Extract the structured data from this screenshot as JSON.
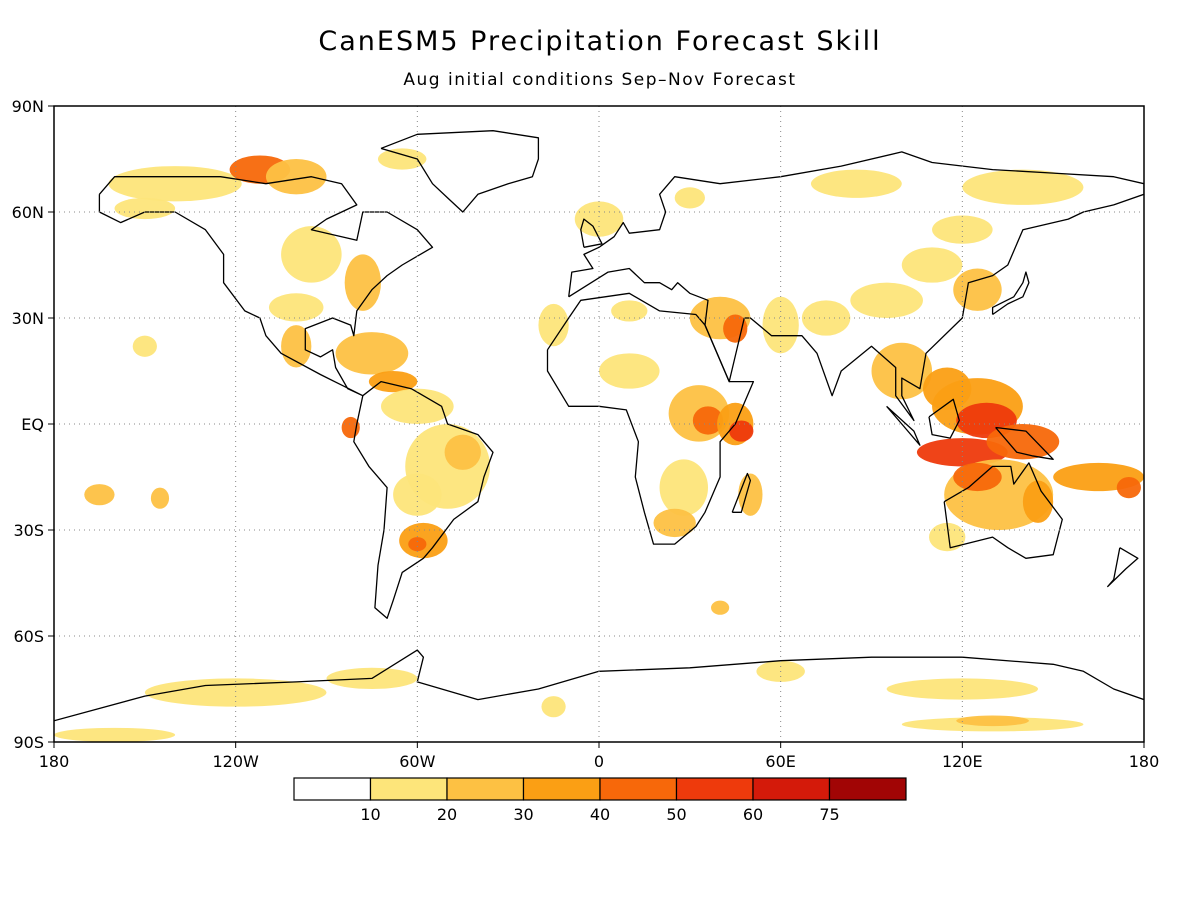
{
  "title": "CanESM5 Precipitation Forecast Skill",
  "subtitle": "Aug initial conditions  Sep–Nov Forecast",
  "map": {
    "lon_range": [
      -180,
      180
    ],
    "lat_range": [
      -90,
      90
    ],
    "grid": true,
    "lat_ticks": [
      {
        "lat": 90,
        "label": "90N"
      },
      {
        "lat": 60,
        "label": "60N"
      },
      {
        "lat": 30,
        "label": "30N"
      },
      {
        "lat": 0,
        "label": "EQ"
      },
      {
        "lat": -30,
        "label": "30S"
      },
      {
        "lat": -60,
        "label": "60S"
      },
      {
        "lat": -90,
        "label": "90S"
      }
    ],
    "lon_ticks": [
      {
        "lon": -180,
        "label": "180"
      },
      {
        "lon": -120,
        "label": "120W"
      },
      {
        "lon": -60,
        "label": "60W"
      },
      {
        "lon": 0,
        "label": "0"
      },
      {
        "lon": 60,
        "label": "60E"
      },
      {
        "lon": 120,
        "label": "120E"
      },
      {
        "lon": 180,
        "label": "180"
      }
    ]
  },
  "colorbar": {
    "colors": [
      "#ffffff",
      "#fde57a",
      "#fdc143",
      "#fb9f14",
      "#f7680a",
      "#ee3a0c",
      "#d41a0a",
      "#a10505"
    ],
    "labels": [
      "10",
      "20",
      "30",
      "40",
      "50",
      "60",
      "75"
    ]
  },
  "skill_regions": [
    {
      "lon": -140,
      "lat": 68,
      "rx": 22,
      "ry": 5,
      "level": 1
    },
    {
      "lon": -112,
      "lat": 72,
      "rx": 10,
      "ry": 4,
      "level": 4
    },
    {
      "lon": -100,
      "lat": 70,
      "rx": 10,
      "ry": 5,
      "level": 2
    },
    {
      "lon": -65,
      "lat": 75,
      "rx": 8,
      "ry": 3,
      "level": 1
    },
    {
      "lon": -150,
      "lat": 61,
      "rx": 10,
      "ry": 3,
      "level": 1
    },
    {
      "lon": -95,
      "lat": 48,
      "rx": 10,
      "ry": 8,
      "level": 1
    },
    {
      "lon": -78,
      "lat": 40,
      "rx": 6,
      "ry": 8,
      "level": 2
    },
    {
      "lon": -100,
      "lat": 33,
      "rx": 9,
      "ry": 4,
      "level": 1
    },
    {
      "lon": -100,
      "lat": 22,
      "rx": 5,
      "ry": 6,
      "level": 2
    },
    {
      "lon": -75,
      "lat": 20,
      "rx": 12,
      "ry": 6,
      "level": 2
    },
    {
      "lon": -68,
      "lat": 12,
      "rx": 8,
      "ry": 3,
      "level": 3
    },
    {
      "lon": -60,
      "lat": 5,
      "rx": 12,
      "ry": 5,
      "level": 1
    },
    {
      "lon": -50,
      "lat": -12,
      "rx": 14,
      "ry": 12,
      "level": 1
    },
    {
      "lon": -45,
      "lat": -8,
      "rx": 6,
      "ry": 5,
      "level": 2
    },
    {
      "lon": -60,
      "lat": -20,
      "rx": 8,
      "ry": 6,
      "level": 1
    },
    {
      "lon": -58,
      "lat": -33,
      "rx": 8,
      "ry": 5,
      "level": 3
    },
    {
      "lon": -60,
      "lat": -34,
      "rx": 3,
      "ry": 2,
      "level": 4
    },
    {
      "lon": -82,
      "lat": -1,
      "rx": 3,
      "ry": 3,
      "level": 4
    },
    {
      "lon": -165,
      "lat": -20,
      "rx": 5,
      "ry": 3,
      "level": 2
    },
    {
      "lon": -145,
      "lat": -21,
      "rx": 3,
      "ry": 3,
      "level": 2
    },
    {
      "lon": -150,
      "lat": 22,
      "rx": 4,
      "ry": 3,
      "level": 1
    },
    {
      "lon": 0,
      "lat": 58,
      "rx": 8,
      "ry": 5,
      "level": 1
    },
    {
      "lon": 30,
      "lat": 64,
      "rx": 5,
      "ry": 3,
      "level": 1
    },
    {
      "lon": 40,
      "lat": 30,
      "rx": 10,
      "ry": 6,
      "level": 2
    },
    {
      "lon": 45,
      "lat": 27,
      "rx": 4,
      "ry": 4,
      "level": 4
    },
    {
      "lon": 60,
      "lat": 28,
      "rx": 6,
      "ry": 8,
      "level": 1
    },
    {
      "lon": 10,
      "lat": 32,
      "rx": 6,
      "ry": 3,
      "level": 1
    },
    {
      "lon": -15,
      "lat": 28,
      "rx": 5,
      "ry": 6,
      "level": 1
    },
    {
      "lon": 10,
      "lat": 15,
      "rx": 10,
      "ry": 5,
      "level": 1
    },
    {
      "lon": 33,
      "lat": 3,
      "rx": 10,
      "ry": 8,
      "level": 2
    },
    {
      "lon": 36,
      "lat": 1,
      "rx": 5,
      "ry": 4,
      "level": 4
    },
    {
      "lon": 45,
      "lat": 0,
      "rx": 6,
      "ry": 6,
      "level": 3
    },
    {
      "lon": 47,
      "lat": -2,
      "rx": 4,
      "ry": 3,
      "level": 5
    },
    {
      "lon": 28,
      "lat": -18,
      "rx": 8,
      "ry": 8,
      "level": 1
    },
    {
      "lon": 25,
      "lat": -28,
      "rx": 7,
      "ry": 4,
      "level": 2
    },
    {
      "lon": 50,
      "lat": -20,
      "rx": 4,
      "ry": 6,
      "level": 2
    },
    {
      "lon": 75,
      "lat": 30,
      "rx": 8,
      "ry": 5,
      "level": 1
    },
    {
      "lon": 95,
      "lat": 35,
      "rx": 12,
      "ry": 5,
      "level": 1
    },
    {
      "lon": 110,
      "lat": 45,
      "rx": 10,
      "ry": 5,
      "level": 1
    },
    {
      "lon": 120,
      "lat": 55,
      "rx": 10,
      "ry": 4,
      "level": 1
    },
    {
      "lon": 140,
      "lat": 67,
      "rx": 20,
      "ry": 5,
      "level": 1
    },
    {
      "lon": 85,
      "lat": 68,
      "rx": 15,
      "ry": 4,
      "level": 1
    },
    {
      "lon": 125,
      "lat": 38,
      "rx": 8,
      "ry": 6,
      "level": 2
    },
    {
      "lon": 100,
      "lat": 15,
      "rx": 10,
      "ry": 8,
      "level": 2
    },
    {
      "lon": 115,
      "lat": 10,
      "rx": 8,
      "ry": 6,
      "level": 3
    },
    {
      "lon": 125,
      "lat": 5,
      "rx": 15,
      "ry": 8,
      "level": 3
    },
    {
      "lon": 128,
      "lat": 1,
      "rx": 10,
      "ry": 5,
      "level": 5
    },
    {
      "lon": 120,
      "lat": -8,
      "rx": 15,
      "ry": 4,
      "level": 5
    },
    {
      "lon": 140,
      "lat": -5,
      "rx": 12,
      "ry": 5,
      "level": 4
    },
    {
      "lon": 132,
      "lat": -20,
      "rx": 18,
      "ry": 10,
      "level": 2
    },
    {
      "lon": 125,
      "lat": -15,
      "rx": 8,
      "ry": 4,
      "level": 4
    },
    {
      "lon": 145,
      "lat": -22,
      "rx": 5,
      "ry": 6,
      "level": 3
    },
    {
      "lon": 165,
      "lat": -15,
      "rx": 15,
      "ry": 4,
      "level": 3
    },
    {
      "lon": 175,
      "lat": -18,
      "rx": 4,
      "ry": 3,
      "level": 4
    },
    {
      "lon": 115,
      "lat": -32,
      "rx": 6,
      "ry": 4,
      "level": 1
    },
    {
      "lon": 40,
      "lat": -52,
      "rx": 3,
      "ry": 2,
      "level": 2
    },
    {
      "lon": -120,
      "lat": -76,
      "rx": 30,
      "ry": 4,
      "level": 1
    },
    {
      "lon": -75,
      "lat": -72,
      "rx": 15,
      "ry": 3,
      "level": 1
    },
    {
      "lon": -160,
      "lat": -88,
      "rx": 20,
      "ry": 2,
      "level": 1
    },
    {
      "lon": 120,
      "lat": -75,
      "rx": 25,
      "ry": 3,
      "level": 1
    },
    {
      "lon": 130,
      "lat": -85,
      "rx": 30,
      "ry": 2,
      "level": 1
    },
    {
      "lon": 130,
      "lat": -84,
      "rx": 12,
      "ry": 1.5,
      "level": 2
    },
    {
      "lon": 60,
      "lat": -70,
      "rx": 8,
      "ry": 3,
      "level": 1
    },
    {
      "lon": -15,
      "lat": -80,
      "rx": 4,
      "ry": 3,
      "level": 1
    }
  ],
  "coastlines": [
    {
      "name": "north-america",
      "points": [
        [
          -165,
          65
        ],
        [
          -160,
          70
        ],
        [
          -140,
          70
        ],
        [
          -125,
          70
        ],
        [
          -110,
          68
        ],
        [
          -95,
          70
        ],
        [
          -85,
          68
        ],
        [
          -80,
          62
        ],
        [
          -90,
          58
        ],
        [
          -95,
          55
        ],
        [
          -80,
          52
        ],
        [
          -78,
          60
        ],
        [
          -70,
          60
        ],
        [
          -60,
          55
        ],
        [
          -55,
          50
        ],
        [
          -65,
          45
        ],
        [
          -70,
          42
        ],
        [
          -75,
          38
        ],
        [
          -80,
          32
        ],
        [
          -81,
          25
        ],
        [
          -82,
          28
        ],
        [
          -88,
          30
        ],
        [
          -97,
          27
        ],
        [
          -97,
          21
        ],
        [
          -92,
          19
        ],
        [
          -88,
          21
        ],
        [
          -87,
          16
        ],
        [
          -83,
          10
        ],
        [
          -78,
          8
        ],
        [
          -85,
          11
        ],
        [
          -92,
          14
        ],
        [
          -105,
          20
        ],
        [
          -110,
          25
        ],
        [
          -112,
          30
        ],
        [
          -117,
          32
        ],
        [
          -124,
          40
        ],
        [
          -124,
          48
        ],
        [
          -130,
          55
        ],
        [
          -140,
          60
        ],
        [
          -150,
          60
        ],
        [
          -158,
          57
        ],
        [
          -165,
          60
        ],
        [
          -165,
          65
        ]
      ]
    },
    {
      "name": "south-america",
      "points": [
        [
          -78,
          8
        ],
        [
          -72,
          12
        ],
        [
          -62,
          10
        ],
        [
          -52,
          5
        ],
        [
          -50,
          0
        ],
        [
          -40,
          -3
        ],
        [
          -35,
          -8
        ],
        [
          -38,
          -15
        ],
        [
          -40,
          -22
        ],
        [
          -48,
          -27
        ],
        [
          -55,
          -35
        ],
        [
          -58,
          -38
        ],
        [
          -65,
          -42
        ],
        [
          -68,
          -50
        ],
        [
          -70,
          -55
        ],
        [
          -74,
          -52
        ],
        [
          -73,
          -40
        ],
        [
          -71,
          -30
        ],
        [
          -70,
          -18
        ],
        [
          -76,
          -12
        ],
        [
          -81,
          -5
        ],
        [
          -80,
          0
        ],
        [
          -78,
          8
        ]
      ]
    },
    {
      "name": "greenland",
      "points": [
        [
          -72,
          78
        ],
        [
          -60,
          82
        ],
        [
          -35,
          83
        ],
        [
          -20,
          81
        ],
        [
          -20,
          75
        ],
        [
          -22,
          70
        ],
        [
          -30,
          68
        ],
        [
          -40,
          65
        ],
        [
          -45,
          60
        ],
        [
          -50,
          64
        ],
        [
          -55,
          68
        ],
        [
          -60,
          75
        ],
        [
          -72,
          78
        ]
      ]
    },
    {
      "name": "africa",
      "points": [
        [
          -17,
          21
        ],
        [
          -10,
          30
        ],
        [
          -6,
          35
        ],
        [
          10,
          37
        ],
        [
          20,
          32
        ],
        [
          32,
          31
        ],
        [
          35,
          28
        ],
        [
          43,
          12
        ],
        [
          51,
          12
        ],
        [
          45,
          0
        ],
        [
          40,
          -5
        ],
        [
          40,
          -15
        ],
        [
          35,
          -25
        ],
        [
          32,
          -29
        ],
        [
          25,
          -34
        ],
        [
          18,
          -34
        ],
        [
          15,
          -25
        ],
        [
          12,
          -15
        ],
        [
          13,
          -5
        ],
        [
          9,
          4
        ],
        [
          0,
          5
        ],
        [
          -10,
          5
        ],
        [
          -17,
          15
        ],
        [
          -17,
          21
        ]
      ]
    },
    {
      "name": "eurasia",
      "points": [
        [
          -10,
          36
        ],
        [
          -9,
          43
        ],
        [
          -2,
          44
        ],
        [
          -5,
          48
        ],
        [
          0,
          50
        ],
        [
          5,
          53
        ],
        [
          8,
          57
        ],
        [
          10,
          54
        ],
        [
          20,
          55
        ],
        [
          22,
          60
        ],
        [
          20,
          65
        ],
        [
          25,
          70
        ],
        [
          40,
          68
        ],
        [
          60,
          70
        ],
        [
          80,
          73
        ],
        [
          100,
          77
        ],
        [
          110,
          74
        ],
        [
          130,
          72
        ],
        [
          150,
          71
        ],
        [
          170,
          70
        ],
        [
          180,
          68
        ],
        [
          180,
          65
        ],
        [
          170,
          62
        ],
        [
          160,
          60
        ],
        [
          155,
          58
        ],
        [
          140,
          55
        ],
        [
          135,
          45
        ],
        [
          130,
          42
        ],
        [
          122,
          40
        ],
        [
          120,
          30
        ],
        [
          108,
          20
        ],
        [
          106,
          10
        ],
        [
          100,
          13
        ],
        [
          100,
          8
        ],
        [
          104,
          1
        ],
        [
          98,
          8
        ],
        [
          98,
          16
        ],
        [
          90,
          22
        ],
        [
          80,
          15
        ],
        [
          77,
          8
        ],
        [
          72,
          20
        ],
        [
          67,
          25
        ],
        [
          57,
          25
        ],
        [
          50,
          30
        ],
        [
          48,
          30
        ],
        [
          43,
          12
        ],
        [
          35,
          28
        ],
        [
          36,
          35
        ],
        [
          30,
          37
        ],
        [
          26,
          40
        ],
        [
          24,
          38
        ],
        [
          20,
          40
        ],
        [
          15,
          40
        ],
        [
          10,
          44
        ],
        [
          3,
          43
        ],
        [
          -10,
          36
        ]
      ]
    },
    {
      "name": "great-britain",
      "points": [
        [
          -5,
          50
        ],
        [
          1,
          51
        ],
        [
          -2,
          56
        ],
        [
          -5,
          58
        ],
        [
          -6,
          55
        ],
        [
          -5,
          50
        ]
      ]
    },
    {
      "name": "madagascar",
      "points": [
        [
          44,
          -25
        ],
        [
          49,
          -14
        ],
        [
          50,
          -16
        ],
        [
          47,
          -25
        ],
        [
          44,
          -25
        ]
      ]
    },
    {
      "name": "australia",
      "points": [
        [
          114,
          -22
        ],
        [
          122,
          -18
        ],
        [
          130,
          -12
        ],
        [
          136,
          -12
        ],
        [
          137,
          -17
        ],
        [
          142,
          -11
        ],
        [
          146,
          -19
        ],
        [
          153,
          -27
        ],
        [
          150,
          -37
        ],
        [
          141,
          -38
        ],
        [
          135,
          -35
        ],
        [
          130,
          -32
        ],
        [
          116,
          -35
        ],
        [
          114,
          -22
        ]
      ]
    },
    {
      "name": "borneo",
      "points": [
        [
          109,
          2
        ],
        [
          117,
          7
        ],
        [
          119,
          1
        ],
        [
          116,
          -4
        ],
        [
          110,
          -3
        ],
        [
          109,
          2
        ]
      ]
    },
    {
      "name": "sumatra",
      "points": [
        [
          95,
          5
        ],
        [
          104,
          -2
        ],
        [
          106,
          -6
        ],
        [
          100,
          0
        ],
        [
          95,
          5
        ]
      ]
    },
    {
      "name": "new-guinea",
      "points": [
        [
          131,
          -1
        ],
        [
          141,
          -2
        ],
        [
          150,
          -10
        ],
        [
          143,
          -9
        ],
        [
          138,
          -8
        ],
        [
          131,
          -1
        ]
      ]
    },
    {
      "name": "japan",
      "points": [
        [
          130,
          31
        ],
        [
          135,
          34
        ],
        [
          140,
          36
        ],
        [
          142,
          40
        ],
        [
          141,
          43
        ],
        [
          140,
          40
        ],
        [
          137,
          36
        ],
        [
          130,
          33
        ],
        [
          130,
          31
        ]
      ]
    },
    {
      "name": "new-zealand",
      "points": [
        [
          172,
          -35
        ],
        [
          178,
          -38
        ],
        [
          174,
          -41
        ],
        [
          168,
          -46
        ],
        [
          170,
          -44
        ],
        [
          172,
          -35
        ]
      ]
    },
    {
      "name": "antarctica",
      "points": [
        [
          -180,
          -84
        ],
        [
          -150,
          -77
        ],
        [
          -130,
          -74
        ],
        [
          -100,
          -73
        ],
        [
          -75,
          -72
        ],
        [
          -60,
          -64
        ],
        [
          -58,
          -66
        ],
        [
          -60,
          -73
        ],
        [
          -40,
          -78
        ],
        [
          -20,
          -75
        ],
        [
          0,
          -70
        ],
        [
          30,
          -69
        ],
        [
          60,
          -67
        ],
        [
          90,
          -66
        ],
        [
          120,
          -66
        ],
        [
          150,
          -68
        ],
        [
          160,
          -70
        ],
        [
          170,
          -75
        ],
        [
          180,
          -78
        ]
      ]
    }
  ]
}
